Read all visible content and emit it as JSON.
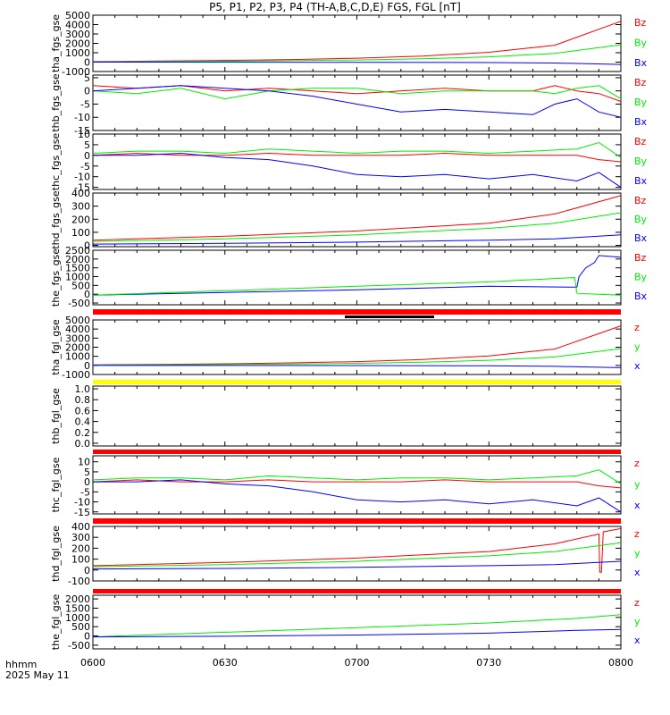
{
  "title": "P5, P1, P2, P3, P4 (TH-A,B,C,D,E) FGS, FGL [nT]",
  "footer": {
    "time_label": "hhmm",
    "date_label": "2025 May 11"
  },
  "x_axis": {
    "ticks": [
      "0600",
      "0630",
      "0700",
      "0730",
      "0800"
    ]
  },
  "colors": {
    "x": "#0000ff",
    "y": "#00ee00",
    "z": "#ff0000",
    "bar_red": "#ff0000",
    "bar_yellow": "#ffff00",
    "bar_black": "#000000"
  },
  "chart_data": [
    {
      "type": "line",
      "ylabel": "tha_fgs_gse",
      "yticks": [
        "5000",
        "4000",
        "3000",
        "2000",
        "1000",
        "0",
        "-1000"
      ],
      "ylim": [
        -1000,
        5000
      ],
      "legend": [
        "Bz",
        "By",
        "Bx"
      ],
      "series": [
        {
          "name": "Bz",
          "color": "z",
          "x": [
            0,
            15,
            30,
            45,
            60,
            75,
            90,
            105,
            120
          ],
          "values": [
            60,
            110,
            180,
            280,
            420,
            650,
            1050,
            1800,
            4350
          ]
        },
        {
          "name": "By",
          "color": "y",
          "x": [
            0,
            15,
            30,
            45,
            60,
            75,
            90,
            105,
            120
          ],
          "values": [
            30,
            60,
            100,
            150,
            230,
            350,
            560,
            930,
            1850
          ]
        },
        {
          "name": "Bx",
          "color": "x",
          "x": [
            0,
            30,
            60,
            90,
            105,
            120
          ],
          "values": [
            0,
            -10,
            -20,
            -50,
            -100,
            -250
          ]
        }
      ]
    },
    {
      "type": "line",
      "ylabel": "thb_fgs_gse",
      "yticks": [
        "5",
        "0",
        "-5",
        "-10",
        "-15"
      ],
      "ylim": [
        -15,
        6
      ],
      "legend": [
        "Bz",
        "By",
        "Bx"
      ],
      "series": [
        {
          "name": "Bz",
          "color": "z",
          "x": [
            0,
            10,
            20,
            30,
            40,
            50,
            60,
            70,
            80,
            90,
            100,
            105,
            110,
            115,
            120
          ],
          "values": [
            2,
            1,
            2,
            0,
            1,
            0,
            -1,
            0,
            1,
            0,
            0,
            2,
            0,
            -1,
            -4
          ]
        },
        {
          "name": "By",
          "color": "y",
          "x": [
            0,
            10,
            20,
            30,
            40,
            50,
            60,
            70,
            80,
            90,
            100,
            105,
            110,
            115,
            120
          ],
          "values": [
            0,
            -1,
            1,
            -3,
            0,
            1,
            1,
            -1,
            0,
            0,
            0,
            -1,
            1,
            2,
            -3
          ]
        },
        {
          "name": "Bx",
          "color": "x",
          "x": [
            0,
            10,
            20,
            30,
            40,
            50,
            60,
            70,
            80,
            90,
            100,
            105,
            110,
            115,
            120
          ],
          "values": [
            0,
            1,
            2,
            1,
            0,
            -2,
            -5,
            -8,
            -7,
            -8,
            -9,
            -5,
            -3,
            -8,
            -10
          ]
        }
      ]
    },
    {
      "type": "line",
      "ylabel": "thc_fgs_gse",
      "yticks": [
        "10",
        "5",
        "0",
        "-5",
        "-10",
        "-15"
      ],
      "ylim": [
        -16,
        10
      ],
      "legend": [
        "Bz",
        "By",
        "Bx"
      ],
      "series": [
        {
          "name": "Bz",
          "color": "z",
          "x": [
            0,
            10,
            20,
            30,
            40,
            50,
            60,
            70,
            80,
            90,
            100,
            110,
            115,
            120
          ],
          "values": [
            0,
            1,
            0,
            0,
            1,
            0,
            0,
            0,
            1,
            0,
            0,
            0,
            -2,
            -3
          ]
        },
        {
          "name": "By",
          "color": "y",
          "x": [
            0,
            10,
            20,
            30,
            40,
            50,
            60,
            70,
            80,
            90,
            100,
            110,
            115,
            120
          ],
          "values": [
            1,
            2,
            2,
            1,
            3,
            2,
            1,
            2,
            2,
            1,
            2,
            3,
            6,
            -1
          ]
        },
        {
          "name": "Bx",
          "color": "x",
          "x": [
            0,
            10,
            20,
            30,
            40,
            50,
            60,
            70,
            80,
            90,
            100,
            110,
            115,
            120
          ],
          "values": [
            0,
            0,
            1,
            -1,
            -2,
            -5,
            -9,
            -10,
            -9,
            -11,
            -9,
            -12,
            -8,
            -15
          ]
        }
      ]
    },
    {
      "type": "line",
      "ylabel": "thd_fgs_gse",
      "yticks": [
        "400",
        "300",
        "200",
        "100",
        "0"
      ],
      "ylim": [
        -10,
        400
      ],
      "legend": [
        "Bz",
        "By",
        "Bx"
      ],
      "series": [
        {
          "name": "Bz",
          "color": "z",
          "x": [
            0,
            30,
            60,
            90,
            105,
            120
          ],
          "values": [
            40,
            70,
            110,
            170,
            240,
            380
          ]
        },
        {
          "name": "By",
          "color": "y",
          "x": [
            0,
            30,
            60,
            90,
            105,
            120
          ],
          "values": [
            30,
            50,
            80,
            130,
            170,
            250
          ]
        },
        {
          "name": "Bx",
          "color": "x",
          "x": [
            0,
            30,
            60,
            90,
            105,
            120
          ],
          "values": [
            10,
            15,
            25,
            40,
            50,
            80
          ]
        }
      ]
    },
    {
      "type": "line",
      "ylabel": "the_fgs_gse",
      "yticks": [
        "2500",
        "2000",
        "1500",
        "1000",
        "500",
        "0",
        "-500"
      ],
      "ylim": [
        -600,
        2500
      ],
      "legend": [
        "Bz",
        "By",
        "Bx"
      ],
      "series": [
        {
          "name": "Bx",
          "color": "x",
          "x": [
            0,
            30,
            60,
            90,
            110,
            110.5,
            112,
            114,
            115,
            120
          ],
          "values": [
            -50,
            100,
            250,
            450,
            400,
            1000,
            1500,
            1800,
            2200,
            2100
          ]
        },
        {
          "name": "By",
          "color": "y",
          "x": [
            0,
            30,
            60,
            90,
            109.5,
            110,
            115,
            120
          ],
          "values": [
            -50,
            200,
            450,
            700,
            950,
            50,
            0,
            -50
          ]
        }
      ]
    },
    {
      "type": "line",
      "ylabel": "tha_fgl_gse",
      "yticks": [
        "5000",
        "4000",
        "3000",
        "2000",
        "1000",
        "0",
        "-1000"
      ],
      "ylim": [
        -1000,
        5000
      ],
      "legend": [
        "z",
        "y",
        "x"
      ],
      "series": [
        {
          "name": "z",
          "color": "z",
          "x": [
            0,
            15,
            30,
            45,
            60,
            75,
            90,
            105,
            120
          ],
          "values": [
            60,
            110,
            180,
            280,
            420,
            650,
            1050,
            1800,
            4350
          ]
        },
        {
          "name": "y",
          "color": "y",
          "x": [
            0,
            15,
            30,
            45,
            60,
            75,
            90,
            105,
            120
          ],
          "values": [
            30,
            60,
            100,
            150,
            230,
            350,
            560,
            930,
            1850
          ]
        },
        {
          "name": "x",
          "color": "x",
          "x": [
            0,
            60,
            90,
            105,
            120
          ],
          "values": [
            0,
            -20,
            -50,
            -100,
            -250
          ]
        }
      ]
    },
    {
      "type": "line",
      "ylabel": "thb_fgl_gse",
      "yticks": [
        "1.0",
        "0.8",
        "0.6",
        "0.4",
        "0.2",
        "0.0"
      ],
      "ylim": [
        -0.05,
        1.05
      ],
      "legend": [],
      "series": []
    },
    {
      "type": "line",
      "ylabel": "thc_fgl_gse",
      "yticks": [
        "10",
        "5",
        "0",
        "-5",
        "-10",
        "-15"
      ],
      "ylim": [
        -16,
        13
      ],
      "legend": [
        "z",
        "y",
        "x"
      ],
      "series": [
        {
          "name": "z",
          "color": "z",
          "x": [
            0,
            10,
            20,
            30,
            40,
            50,
            60,
            70,
            80,
            90,
            100,
            110,
            115,
            120
          ],
          "values": [
            0,
            1,
            0,
            0,
            1,
            0,
            0,
            0,
            1,
            0,
            0,
            0,
            -2,
            -3
          ]
        },
        {
          "name": "y",
          "color": "y",
          "x": [
            0,
            10,
            20,
            30,
            40,
            50,
            60,
            70,
            80,
            90,
            100,
            110,
            115,
            120
          ],
          "values": [
            1,
            2,
            2,
            1,
            3,
            2,
            1,
            2,
            2,
            1,
            2,
            3,
            6,
            -1
          ]
        },
        {
          "name": "x",
          "color": "x",
          "x": [
            0,
            10,
            20,
            30,
            40,
            50,
            60,
            70,
            80,
            90,
            100,
            110,
            115,
            120
          ],
          "values": [
            0,
            0,
            1,
            -1,
            -2,
            -5,
            -9,
            -10,
            -9,
            -11,
            -9,
            -12,
            -8,
            -15
          ]
        }
      ]
    },
    {
      "type": "line",
      "ylabel": "thd_fgl_gse",
      "yticks": [
        "400",
        "300",
        "200",
        "100",
        "0",
        "-100"
      ],
      "ylim": [
        -100,
        400
      ],
      "legend": [
        "z",
        "y",
        "x"
      ],
      "series": [
        {
          "name": "z",
          "color": "z",
          "x": [
            0,
            30,
            60,
            90,
            105,
            115,
            115.2,
            115.6,
            116,
            120
          ],
          "values": [
            40,
            70,
            110,
            170,
            240,
            330,
            -20,
            -20,
            350,
            380
          ]
        },
        {
          "name": "y",
          "color": "y",
          "x": [
            0,
            30,
            60,
            90,
            105,
            120
          ],
          "values": [
            30,
            50,
            80,
            130,
            170,
            250
          ]
        },
        {
          "name": "x",
          "color": "x",
          "x": [
            0,
            30,
            60,
            90,
            105,
            120
          ],
          "values": [
            10,
            15,
            25,
            40,
            50,
            80
          ]
        }
      ]
    },
    {
      "type": "line",
      "ylabel": "the_fgl_gse",
      "yticks": [
        "2000",
        "1500",
        "1000",
        "500",
        "0",
        "-500"
      ],
      "ylim": [
        -700,
        2200
      ],
      "legend": [
        "z",
        "y",
        "x"
      ],
      "series": [
        {
          "name": "y",
          "color": "y",
          "x": [
            0,
            30,
            60,
            90,
            110,
            120
          ],
          "values": [
            -50,
            200,
            450,
            700,
            950,
            1150
          ]
        },
        {
          "name": "x",
          "color": "x",
          "x": [
            0,
            30,
            60,
            90,
            110,
            120
          ],
          "values": [
            -50,
            -20,
            50,
            150,
            300,
            350
          ]
        }
      ]
    }
  ]
}
